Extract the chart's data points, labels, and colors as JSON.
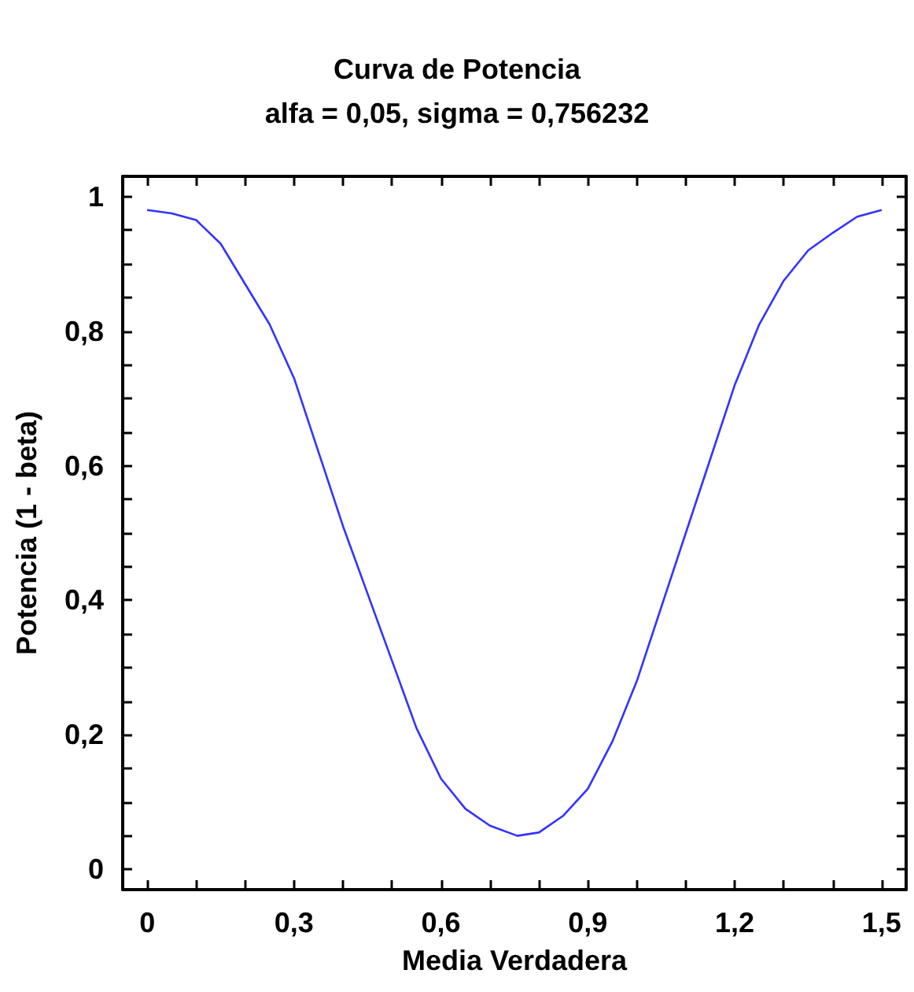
{
  "chart_data": {
    "type": "line",
    "title": "Curva de Potencia",
    "subtitle": "alfa = 0,05, sigma = 0,756232",
    "xlabel": "Media Verdadera",
    "ylabel": "Potencia (1 - beta)",
    "x": [
      0,
      0.05,
      0.1,
      0.15,
      0.2,
      0.25,
      0.3,
      0.35,
      0.4,
      0.45,
      0.5,
      0.55,
      0.6,
      0.65,
      0.7,
      0.756,
      0.8,
      0.85,
      0.9,
      0.95,
      1.0,
      1.05,
      1.1,
      1.15,
      1.2,
      1.25,
      1.3,
      1.35,
      1.4,
      1.45,
      1.5
    ],
    "series": [
      {
        "color": "#3333ff",
        "values": [
          0.98,
          0.975,
          0.965,
          0.93,
          0.87,
          0.81,
          0.73,
          0.62,
          0.51,
          0.41,
          0.31,
          0.21,
          0.135,
          0.09,
          0.065,
          0.05,
          0.055,
          0.08,
          0.12,
          0.19,
          0.28,
          0.39,
          0.5,
          0.61,
          0.72,
          0.81,
          0.875,
          0.92,
          0.946,
          0.97,
          0.98
        ]
      }
    ],
    "xlim": [
      -0.05,
      1.55
    ],
    "ylim": [
      -0.03,
      1.03
    ],
    "xticks": [
      {
        "value": 0,
        "label": "0"
      },
      {
        "value": 0.1,
        "label": null
      },
      {
        "value": 0.2,
        "label": null
      },
      {
        "value": 0.3,
        "label": "0,3"
      },
      {
        "value": 0.4,
        "label": null
      },
      {
        "value": 0.5,
        "label": null
      },
      {
        "value": 0.6,
        "label": "0,6"
      },
      {
        "value": 0.7,
        "label": null
      },
      {
        "value": 0.8,
        "label": null
      },
      {
        "value": 0.9,
        "label": "0,9"
      },
      {
        "value": 1.0,
        "label": null
      },
      {
        "value": 1.1,
        "label": null
      },
      {
        "value": 1.2,
        "label": "1,2"
      },
      {
        "value": 1.3,
        "label": null
      },
      {
        "value": 1.4,
        "label": null
      },
      {
        "value": 1.5,
        "label": "1,5"
      }
    ],
    "yticks": [
      {
        "value": 0,
        "label": "0"
      },
      {
        "value": 0.05,
        "label": null
      },
      {
        "value": 0.1,
        "label": null
      },
      {
        "value": 0.15,
        "label": null
      },
      {
        "value": 0.2,
        "label": "0,2"
      },
      {
        "value": 0.25,
        "label": null
      },
      {
        "value": 0.3,
        "label": null
      },
      {
        "value": 0.35,
        "label": null
      },
      {
        "value": 0.4,
        "label": "0,4"
      },
      {
        "value": 0.45,
        "label": null
      },
      {
        "value": 0.5,
        "label": null
      },
      {
        "value": 0.55,
        "label": null
      },
      {
        "value": 0.6,
        "label": "0,6"
      },
      {
        "value": 0.65,
        "label": null
      },
      {
        "value": 0.7,
        "label": null
      },
      {
        "value": 0.75,
        "label": null
      },
      {
        "value": 0.8,
        "label": "0,8"
      },
      {
        "value": 0.85,
        "label": null
      },
      {
        "value": 0.9,
        "label": null
      },
      {
        "value": 0.95,
        "label": null
      },
      {
        "value": 1,
        "label": "1"
      }
    ],
    "grid": false,
    "marker": "none",
    "line_style": "solid"
  }
}
